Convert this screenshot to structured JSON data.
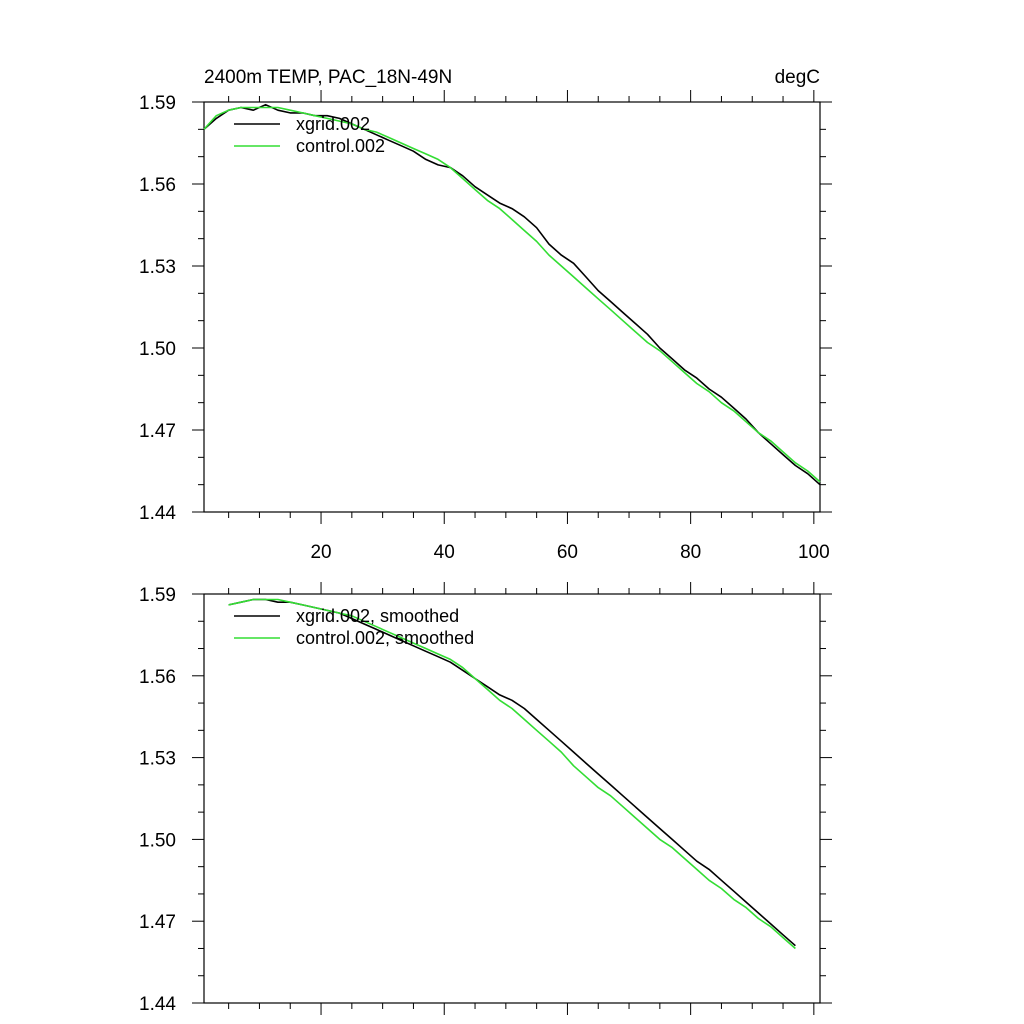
{
  "chart_data": [
    {
      "type": "line",
      "title_left": "2400m TEMP, PAC_18N-49N",
      "title_right": "degC",
      "xlim": [
        1,
        101
      ],
      "ylim": [
        1.44,
        1.59
      ],
      "yticks": [
        "1.44",
        "1.47",
        "1.50",
        "1.53",
        "1.56",
        "1.59"
      ],
      "xticks": [
        "20",
        "40",
        "60",
        "80",
        "100"
      ],
      "x": [
        1,
        3,
        5,
        7,
        9,
        11,
        13,
        15,
        17,
        19,
        21,
        23,
        25,
        27,
        29,
        31,
        33,
        35,
        37,
        39,
        41,
        43,
        45,
        47,
        49,
        51,
        53,
        55,
        57,
        59,
        61,
        63,
        65,
        67,
        69,
        71,
        73,
        75,
        77,
        79,
        81,
        83,
        85,
        87,
        89,
        91,
        93,
        95,
        97,
        99,
        101
      ],
      "series": [
        {
          "name": "xgrid.002",
          "color": "#000000",
          "values": [
            1.58,
            1.584,
            1.587,
            1.588,
            1.587,
            1.589,
            1.587,
            1.586,
            1.586,
            1.585,
            1.585,
            1.584,
            1.582,
            1.58,
            1.578,
            1.576,
            1.574,
            1.572,
            1.569,
            1.567,
            1.566,
            1.563,
            1.559,
            1.556,
            1.553,
            1.551,
            1.548,
            1.544,
            1.538,
            1.534,
            1.531,
            1.526,
            1.521,
            1.517,
            1.513,
            1.509,
            1.505,
            1.5,
            1.496,
            1.492,
            1.489,
            1.485,
            1.482,
            1.478,
            1.474,
            1.469,
            1.465,
            1.461,
            1.457,
            1.454,
            1.45
          ]
        },
        {
          "name": "control.002",
          "color": "#33dd33",
          "values": [
            1.58,
            1.585,
            1.587,
            1.588,
            1.588,
            1.588,
            1.588,
            1.587,
            1.586,
            1.585,
            1.584,
            1.583,
            1.582,
            1.58,
            1.579,
            1.577,
            1.575,
            1.573,
            1.571,
            1.569,
            1.566,
            1.562,
            1.558,
            1.554,
            1.551,
            1.547,
            1.543,
            1.539,
            1.534,
            1.53,
            1.526,
            1.522,
            1.518,
            1.514,
            1.51,
            1.506,
            1.502,
            1.499,
            1.495,
            1.491,
            1.487,
            1.484,
            1.48,
            1.477,
            1.473,
            1.469,
            1.466,
            1.462,
            1.458,
            1.455,
            1.451
          ]
        }
      ]
    },
    {
      "type": "line",
      "xlim": [
        1,
        101
      ],
      "ylim": [
        1.44,
        1.59
      ],
      "yticks": [
        "1.44",
        "1.47",
        "1.50",
        "1.53",
        "1.56",
        "1.59"
      ],
      "x": [
        5,
        7,
        9,
        11,
        13,
        15,
        17,
        19,
        21,
        23,
        25,
        27,
        29,
        31,
        33,
        35,
        37,
        39,
        41,
        43,
        45,
        47,
        49,
        51,
        53,
        55,
        57,
        59,
        61,
        63,
        65,
        67,
        69,
        71,
        73,
        75,
        77,
        79,
        81,
        83,
        85,
        87,
        89,
        91,
        93,
        95,
        97
      ],
      "series": [
        {
          "name": "xgrid.002, smoothed",
          "color": "#000000",
          "values": [
            1.586,
            1.587,
            1.588,
            1.588,
            1.587,
            1.587,
            1.586,
            1.585,
            1.584,
            1.583,
            1.581,
            1.579,
            1.577,
            1.575,
            1.573,
            1.571,
            1.569,
            1.567,
            1.565,
            1.562,
            1.559,
            1.556,
            1.553,
            1.551,
            1.548,
            1.544,
            1.54,
            1.536,
            1.532,
            1.528,
            1.524,
            1.52,
            1.516,
            1.512,
            1.508,
            1.504,
            1.5,
            1.496,
            1.492,
            1.489,
            1.485,
            1.481,
            1.477,
            1.473,
            1.469,
            1.465,
            1.461
          ]
        },
        {
          "name": "control.002, smoothed",
          "color": "#33dd33",
          "values": [
            1.586,
            1.587,
            1.588,
            1.588,
            1.588,
            1.587,
            1.586,
            1.585,
            1.584,
            1.583,
            1.582,
            1.58,
            1.578,
            1.576,
            1.574,
            1.572,
            1.57,
            1.568,
            1.566,
            1.563,
            1.559,
            1.555,
            1.551,
            1.548,
            1.544,
            1.54,
            1.536,
            1.532,
            1.527,
            1.523,
            1.519,
            1.516,
            1.512,
            1.508,
            1.504,
            1.5,
            1.497,
            1.493,
            1.489,
            1.485,
            1.482,
            1.478,
            1.475,
            1.471,
            1.468,
            1.464,
            1.46
          ]
        }
      ]
    }
  ]
}
